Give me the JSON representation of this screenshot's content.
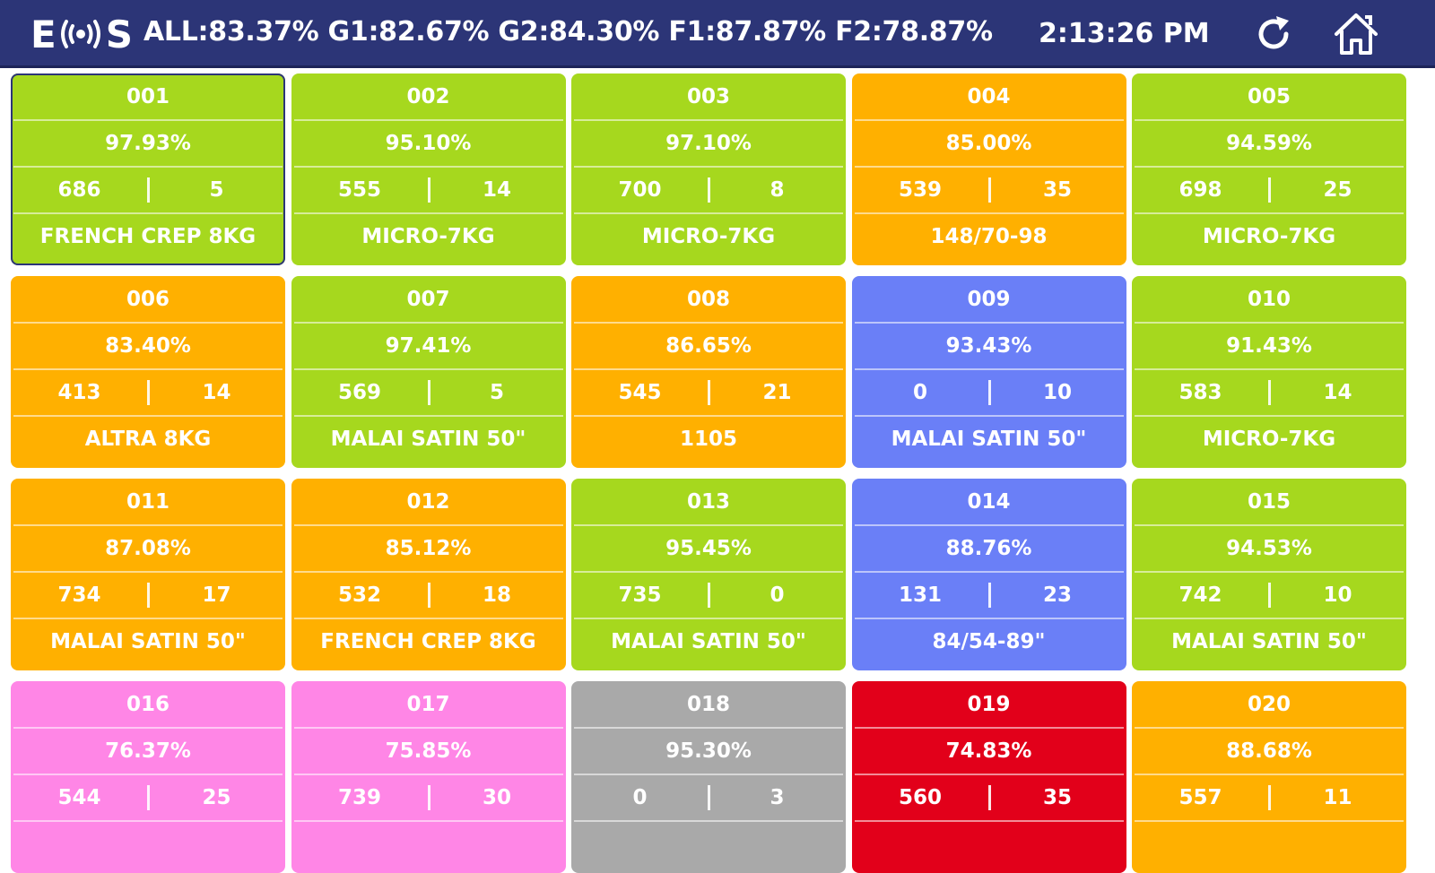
{
  "header": {
    "logo_left": "E",
    "logo_right": "S",
    "stats": "ALL:83.37% G1:82.67% G2:84.30% F1:87.87% F2:78.87%",
    "time": "2:13:26 PM",
    "refresh_icon": "refresh-icon",
    "home_icon": "home-icon"
  },
  "colors": {
    "green": "#a6d81e",
    "orange": "#ffb000",
    "blue": "#6a7ff7",
    "pink": "#ff86e6",
    "gray": "#a9a9a9",
    "red": "#e2001a",
    "header": "#2c3577"
  },
  "machines": [
    {
      "id": "001",
      "efficiency": "97.93%",
      "left_count": "686",
      "right_count": "5",
      "product": "FRENCH CREP 8KG",
      "color": "green",
      "selected": true
    },
    {
      "id": "002",
      "efficiency": "95.10%",
      "left_count": "555",
      "right_count": "14",
      "product": "MICRO-7KG",
      "color": "green"
    },
    {
      "id": "003",
      "efficiency": "97.10%",
      "left_count": "700",
      "right_count": "8",
      "product": "MICRO-7KG",
      "color": "green"
    },
    {
      "id": "004",
      "efficiency": "85.00%",
      "left_count": "539",
      "right_count": "35",
      "product": "148/70-98",
      "color": "orange"
    },
    {
      "id": "005",
      "efficiency": "94.59%",
      "left_count": "698",
      "right_count": "25",
      "product": "MICRO-7KG",
      "color": "green"
    },
    {
      "id": "006",
      "efficiency": "83.40%",
      "left_count": "413",
      "right_count": "14",
      "product": "ALTRA 8KG",
      "color": "orange"
    },
    {
      "id": "007",
      "efficiency": "97.41%",
      "left_count": "569",
      "right_count": "5",
      "product": "MALAI SATIN 50\"",
      "color": "green"
    },
    {
      "id": "008",
      "efficiency": "86.65%",
      "left_count": "545",
      "right_count": "21",
      "product": "1105",
      "color": "orange"
    },
    {
      "id": "009",
      "efficiency": "93.43%",
      "left_count": "0",
      "right_count": "10",
      "product": "MALAI SATIN 50\"",
      "color": "blue"
    },
    {
      "id": "010",
      "efficiency": "91.43%",
      "left_count": "583",
      "right_count": "14",
      "product": "MICRO-7KG",
      "color": "green"
    },
    {
      "id": "011",
      "efficiency": "87.08%",
      "left_count": "734",
      "right_count": "17",
      "product": "MALAI SATIN 50\"",
      "color": "orange"
    },
    {
      "id": "012",
      "efficiency": "85.12%",
      "left_count": "532",
      "right_count": "18",
      "product": "FRENCH CREP 8KG",
      "color": "orange"
    },
    {
      "id": "013",
      "efficiency": "95.45%",
      "left_count": "735",
      "right_count": "0",
      "product": "MALAI SATIN 50\"",
      "color": "green"
    },
    {
      "id": "014",
      "efficiency": "88.76%",
      "left_count": "131",
      "right_count": "23",
      "product": "84/54-89\"",
      "color": "blue"
    },
    {
      "id": "015",
      "efficiency": "94.53%",
      "left_count": "742",
      "right_count": "10",
      "product": "MALAI SATIN 50\"",
      "color": "green"
    },
    {
      "id": "016",
      "efficiency": "76.37%",
      "left_count": "544",
      "right_count": "25",
      "product": "",
      "color": "pink"
    },
    {
      "id": "017",
      "efficiency": "75.85%",
      "left_count": "739",
      "right_count": "30",
      "product": "",
      "color": "pink"
    },
    {
      "id": "018",
      "efficiency": "95.30%",
      "left_count": "0",
      "right_count": "3",
      "product": "",
      "color": "gray"
    },
    {
      "id": "019",
      "efficiency": "74.83%",
      "left_count": "560",
      "right_count": "35",
      "product": "",
      "color": "red"
    },
    {
      "id": "020",
      "efficiency": "88.68%",
      "left_count": "557",
      "right_count": "11",
      "product": "",
      "color": "orange"
    }
  ]
}
